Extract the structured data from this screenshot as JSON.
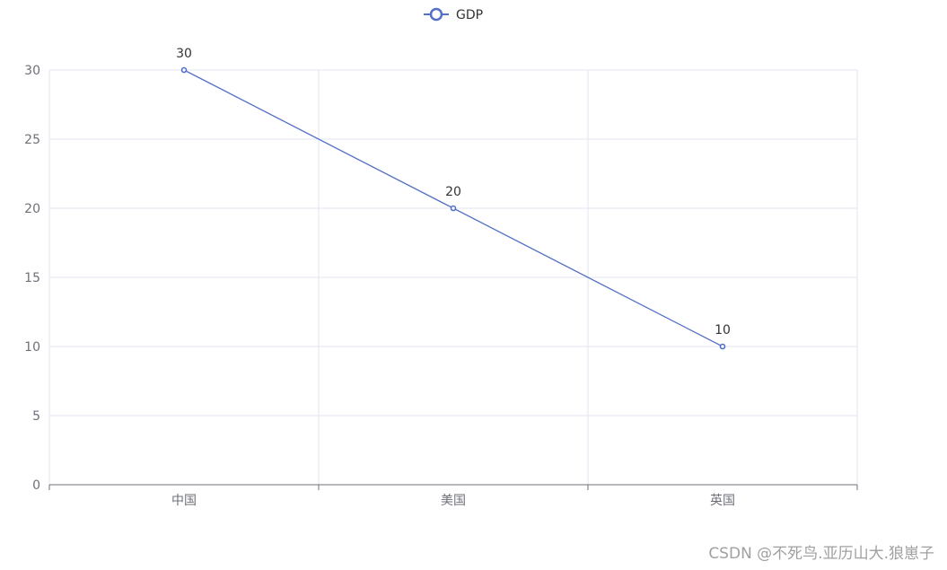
{
  "chart_data": {
    "type": "line",
    "categories": [
      "中国",
      "美国",
      "英国"
    ],
    "series": [
      {
        "name": "GDP",
        "values": [
          30,
          20,
          10
        ]
      }
    ],
    "ylim": [
      0,
      30
    ],
    "yticks": [
      0,
      5,
      10,
      15,
      20,
      25,
      30
    ],
    "grid": true,
    "legend_position": "top-center",
    "show_data_labels": true,
    "colors": {
      "series": "#5470c6",
      "grid": "#e0e6f1",
      "axis": "#6e7079"
    }
  },
  "watermark": "CSDN @不死鸟.亚历山大.狼崽子"
}
